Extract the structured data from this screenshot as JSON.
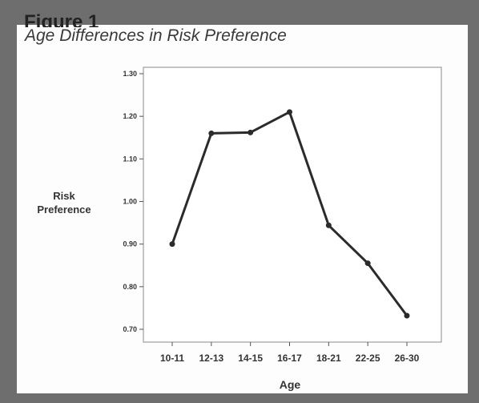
{
  "figure": {
    "heading": "Figure 1",
    "subtitle": "Age Differences in Risk Preference"
  },
  "chart_data": {
    "type": "line",
    "title": "Age Differences in Risk Preference",
    "xlabel": "Age",
    "ylabel": [
      "Risk",
      "Preference"
    ],
    "categories": [
      "10-11",
      "12-13",
      "14-15",
      "16-17",
      "18-21",
      "22-25",
      "26-30"
    ],
    "series": [
      {
        "values": [
          0.9,
          1.16,
          1.162,
          1.21,
          0.944,
          0.855,
          0.732
        ]
      }
    ],
    "ylim": [
      0.7,
      1.3
    ],
    "yticks": [
      0.7,
      0.8,
      0.9,
      1.0,
      1.1,
      1.2,
      1.3
    ],
    "ytick_labels": [
      "0.70",
      "0.80",
      "0.90",
      "1.00",
      "1.10",
      "1.20",
      "1.30"
    ],
    "grid": false,
    "line_color": "#2b2b2b"
  }
}
